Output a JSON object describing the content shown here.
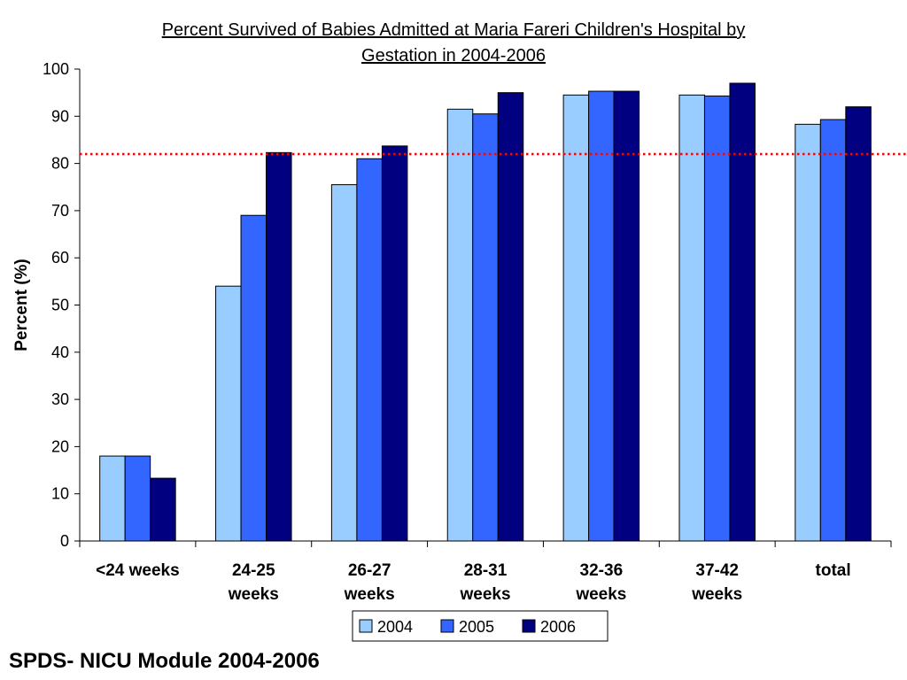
{
  "chart_data": {
    "type": "bar",
    "title_lines": [
      "Percent Survived of Babies Admitted at Maria Fareri Children's Hospital by",
      "Gestation in 2004-2006"
    ],
    "ylabel": "Percent (%)",
    "xlabel": "",
    "ylim": [
      0,
      100
    ],
    "yticks": [
      0,
      10,
      20,
      30,
      40,
      50,
      60,
      70,
      80,
      90,
      100
    ],
    "categories": [
      [
        "<24 weeks"
      ],
      [
        "24-25",
        "weeks"
      ],
      [
        "26-27",
        "weeks"
      ],
      [
        "28-31",
        "weeks"
      ],
      [
        "32-36",
        "weeks"
      ],
      [
        "37-42",
        "weeks"
      ],
      [
        "total"
      ]
    ],
    "series": [
      {
        "name": "2004",
        "color": "#99ccff",
        "values": [
          18,
          54,
          75.5,
          91.5,
          94.5,
          94.5,
          88.3
        ]
      },
      {
        "name": "2005",
        "color": "#3366ff",
        "values": [
          18,
          69,
          81,
          90.5,
          95.3,
          94.3,
          89.3
        ]
      },
      {
        "name": "2006",
        "color": "#000080",
        "values": [
          13.3,
          82.3,
          83.7,
          95,
          95.3,
          97,
          92
        ]
      }
    ],
    "reference_line": {
      "value": 82,
      "color": "#ff0000",
      "style": "dotted"
    },
    "grid": false,
    "legend_position": "bottom"
  },
  "footer": "SPDS- NICU Module 2004-2006"
}
